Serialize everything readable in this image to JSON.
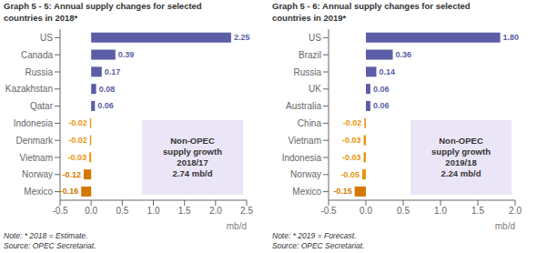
{
  "chart_data": [
    {
      "type": "bar",
      "orientation": "horizontal",
      "title": "Graph 5 - 5: Annual supply changes for selected\ncountries in 2018*",
      "xlabel": "mb/d",
      "categories": [
        "US",
        "Canada",
        "Russia",
        "Kazakhstan",
        "Qatar",
        "Indonesia",
        "Denmark",
        "Vietnam",
        "Norway",
        "Mexico"
      ],
      "values": [
        2.25,
        0.39,
        0.17,
        0.08,
        0.06,
        -0.02,
        -0.02,
        -0.03,
        -0.12,
        -0.16
      ],
      "value_labels": [
        "2.25",
        "0.39",
        "0.17",
        "0.08",
        "0.06",
        "-0.02",
        "-0.02",
        "-0.03",
        "-0.12",
        "-0.16"
      ],
      "data_labels": true,
      "colors": [
        "#5b5ea6",
        "#5b5ea6",
        "#5b5ea6",
        "#5b5ea6",
        "#5b5ea6",
        "#e8960a",
        "#e8960a",
        "#e8960a",
        "#d47800",
        "#d47800"
      ],
      "xlim": [
        -0.5,
        2.5
      ],
      "xticks": [
        -0.5,
        {
          "value": 0,
          "label": "0.0"
        },
        0.5,
        {
          "value": 1,
          "label": "1.0"
        },
        1.5,
        {
          "value": 2,
          "label": "2.0"
        },
        2.5
      ],
      "annotations": [
        "Non-OPEC\nsupply growth\n2018/17\n2.74 mb/d",
        "Note: * 2018 = Estimate.\nSource: OPEC Secretariat."
      ]
    },
    {
      "type": "bar",
      "orientation": "horizontal",
      "title": "Graph 5 - 6: Annual supply changes for selected\ncountries in 2019*",
      "xlabel": "mb/d",
      "categories": [
        "US",
        "Brazil",
        "Russia",
        "UK",
        "Australia",
        "China",
        "Vietnam",
        "Indonesia",
        "Norway",
        "Mexico"
      ],
      "values": [
        1.8,
        0.36,
        0.14,
        0.06,
        0.06,
        -0.02,
        -0.03,
        -0.03,
        -0.05,
        -0.15
      ],
      "value_labels": [
        "1.80",
        "0.36",
        "0.14",
        "0.06",
        "0.06",
        "-0.02",
        "-0.03",
        "-0.03",
        "-0.05",
        "-0.15"
      ],
      "data_labels": true,
      "colors": [
        "#5b5ea6",
        "#5b5ea6",
        "#5b5ea6",
        "#5b5ea6",
        "#5b5ea6",
        "#e8960a",
        "#e8960a",
        "#e8960a",
        "#e8960a",
        "#d47800"
      ],
      "xlim": [
        -0.5,
        2.0
      ],
      "xticks": [
        -0.5,
        {
          "value": 0,
          "label": "0.0"
        },
        0.5,
        {
          "value": 1,
          "label": "1.0"
        },
        1.5,
        {
          "value": 2,
          "label": "2.0"
        }
      ],
      "annotations": [
        "Non-OPEC\nsupply growth\n2019/18\n2.24 mb/d",
        "Note: * 2019 = Forecast.\nSource: OPEC Secretariat."
      ]
    }
  ]
}
